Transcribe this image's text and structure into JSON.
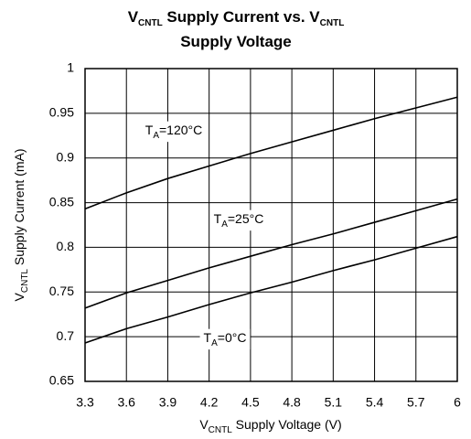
{
  "chart_data": {
    "type": "line",
    "title": [
      [
        "V",
        "CNTL",
        " Supply Current vs. V",
        "CNTL"
      ],
      [
        "Supply Voltage"
      ]
    ],
    "x_label": [
      "V",
      "CNTL",
      " Supply Voltage (V)"
    ],
    "y_label": [
      "V",
      "CNTL",
      " Supply Current (mA)"
    ],
    "x": [
      3.3,
      3.6,
      3.9,
      4.2,
      4.5,
      4.8,
      5.1,
      5.4,
      5.7,
      6
    ],
    "series": [
      {
        "label": [
          "T",
          "A",
          "=120°C"
        ],
        "color": "#000000",
        "values": [
          0.843,
          0.861,
          0.877,
          0.891,
          0.905,
          0.918,
          0.931,
          0.944,
          0.956,
          0.968
        ]
      },
      {
        "label": [
          "T",
          "A",
          "=25°C"
        ],
        "color": "#000000",
        "values": [
          0.732,
          0.749,
          0.763,
          0.777,
          0.79,
          0.803,
          0.815,
          0.828,
          0.841,
          0.854
        ]
      },
      {
        "label": [
          "T",
          "A",
          "=0°C"
        ],
        "color": "#000000",
        "values": [
          0.693,
          0.709,
          0.722,
          0.736,
          0.749,
          0.761,
          0.774,
          0.786,
          0.799,
          0.812
        ]
      }
    ],
    "xlim": [
      3.3,
      6
    ],
    "xticks": [
      3.3,
      3.6,
      3.9,
      4.2,
      4.5,
      4.8,
      5.1,
      5.4,
      5.7,
      6
    ],
    "ylim": [
      0.65,
      1
    ],
    "yticks": [
      0.65,
      0.7,
      0.75,
      0.8,
      0.85,
      0.9,
      0.95,
      1
    ],
    "grid": true
  }
}
